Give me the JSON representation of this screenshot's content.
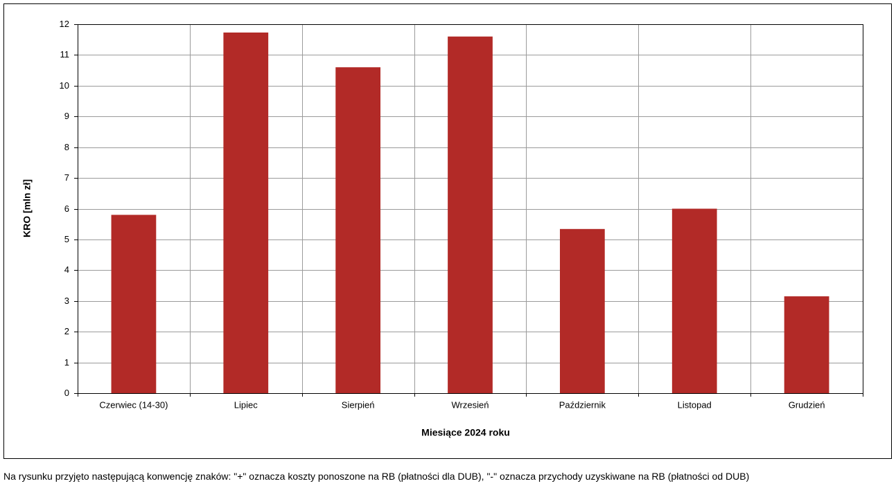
{
  "chart_data": {
    "type": "bar",
    "x_label": "Miesiące 2024 roku",
    "y_label": "KRO [mln zł]",
    "categories": [
      "Czerwiec (14-30)",
      "Lipiec",
      "Sierpień",
      "Wrzesień",
      "Październik",
      "Listopad",
      "Grudzień"
    ],
    "values": [
      5.8,
      11.73,
      10.6,
      11.6,
      5.34,
      6.0,
      3.15
    ],
    "color": "#b22a27",
    "ylim": [
      0,
      12
    ],
    "yticks": [
      0,
      1,
      2,
      3,
      4,
      5,
      6,
      7,
      8,
      9,
      10,
      11,
      12
    ],
    "grid": true
  },
  "note": "Na rysunku przyjęto następującą konwencję znaków: \"+\" oznacza koszty ponoszone na RB (płatności dla DUB), \"-\" oznacza przychody uzyskiwane na RB (płatności od DUB)"
}
